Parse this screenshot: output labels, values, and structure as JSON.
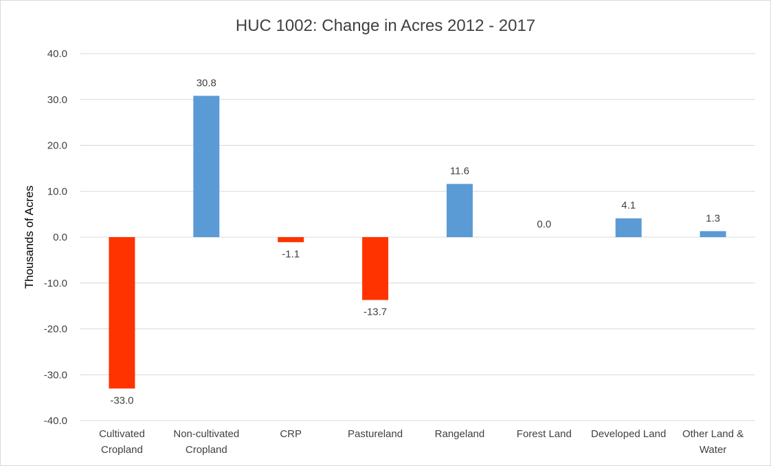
{
  "chart_data": {
    "type": "bar",
    "title": "HUC 1002: Change in Acres 2012 - 2017",
    "xlabel": "",
    "ylabel": "Thousands of Acres",
    "ylim": [
      -40,
      40
    ],
    "ytick_step": 10,
    "ytick_labels": [
      "40.0",
      "30.0",
      "20.0",
      "10.0",
      "0.0",
      "-10.0",
      "-20.0",
      "-30.0",
      "-40.0"
    ],
    "grid": true,
    "legend": "none",
    "categories": [
      [
        "Cultivated",
        "Cropland"
      ],
      [
        "Non-cultivated",
        "Cropland"
      ],
      [
        "CRP"
      ],
      [
        "Pastureland"
      ],
      [
        "Rangeland"
      ],
      [
        "Forest Land"
      ],
      [
        "Developed Land"
      ],
      [
        "Other Land &",
        "Water"
      ]
    ],
    "values": [
      -33.0,
      30.8,
      -1.1,
      -13.7,
      11.6,
      0.0,
      4.1,
      1.3
    ],
    "data_labels": [
      "-33.0",
      "30.8",
      "-1.1",
      "-13.7",
      "11.6",
      "0.0",
      "4.1",
      "1.3"
    ],
    "colors": {
      "positive": "#5b9bd5",
      "negative": "#ff3300"
    }
  }
}
